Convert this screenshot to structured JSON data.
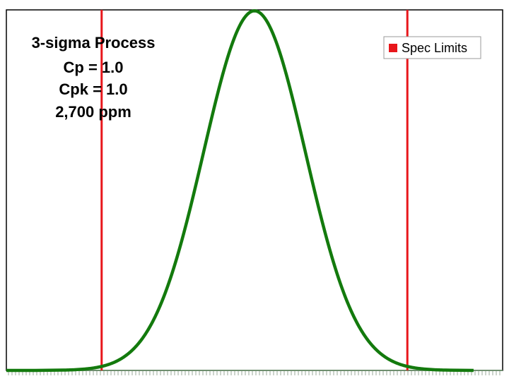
{
  "chart_data": {
    "type": "line",
    "title": "",
    "xlabel": "",
    "ylabel": "",
    "xlim": [
      -4.87,
      4.87
    ],
    "ylim": [
      0,
      0.4
    ],
    "grid": false,
    "legend_position": "top-right",
    "annotations": [
      "3-sigma Process",
      "Cp = 1.0",
      "Cpk = 1.0",
      "2,700 ppm"
    ],
    "spec_limits": {
      "name": "Spec Limits",
      "color": "#e8161b",
      "values": [
        -3,
        3
      ]
    },
    "series": [
      {
        "distribution": "normal",
        "mean": 0,
        "sd": 1,
        "color": "#137a0d"
      }
    ]
  }
}
